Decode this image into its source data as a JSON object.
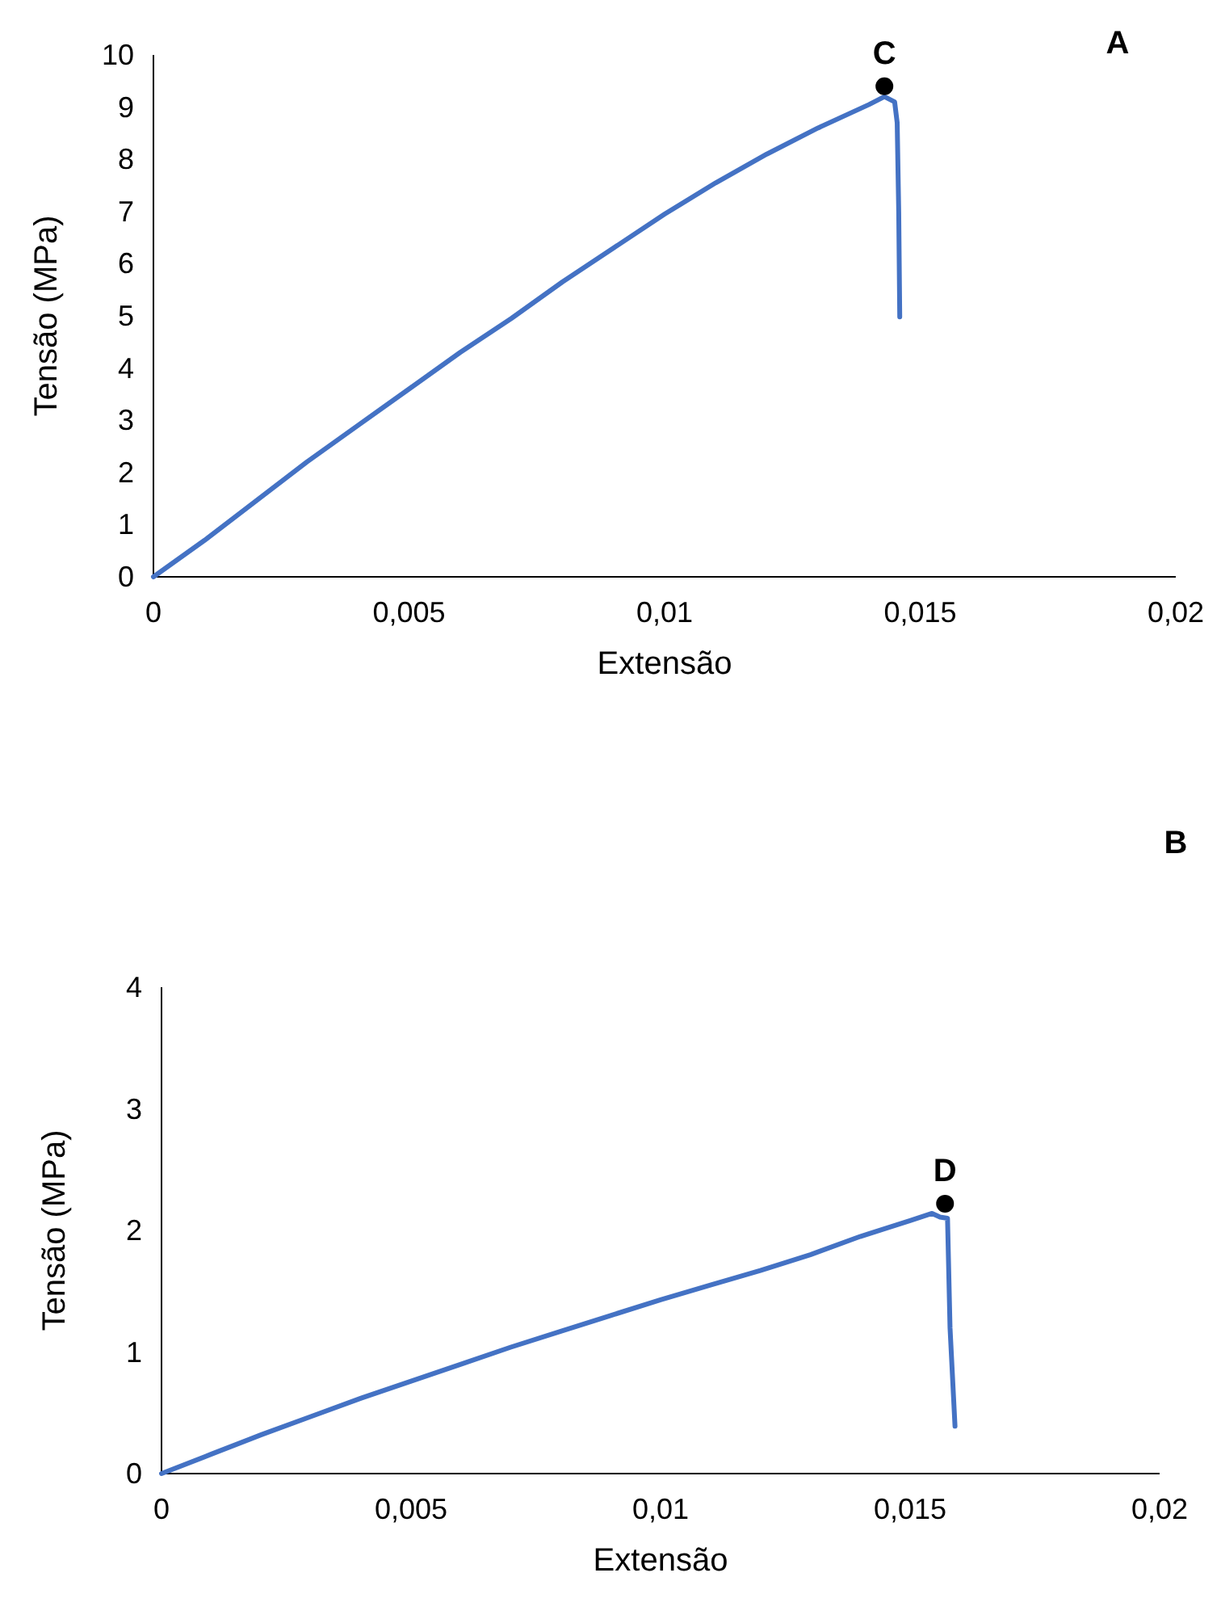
{
  "chart_data": [
    {
      "type": "line",
      "xlabel": "Extensão",
      "ylabel": "Tensão (MPa)",
      "xlim": [
        0,
        0.02
      ],
      "ylim": [
        0,
        10
      ],
      "xticks": [
        0,
        {
          "value": 0.005,
          "label": "0,005"
        },
        {
          "value": 0.01,
          "label": "0,01"
        },
        {
          "value": 0.015,
          "label": "0,015"
        },
        {
          "value": 0.02,
          "label": "0,02"
        }
      ],
      "yticks": [
        0,
        1,
        2,
        3,
        4,
        5,
        6,
        7,
        8,
        9,
        10
      ],
      "grid": false,
      "series": [
        {
          "type": "line",
          "color": "#4472c4",
          "x": [
            0,
            0.001,
            0.002,
            0.003,
            0.004,
            0.005,
            0.006,
            0.007,
            0.008,
            0.009,
            0.01,
            0.011,
            0.012,
            0.013,
            0.014,
            0.0143,
            0.0145,
            0.01455,
            0.01458,
            0.0146
          ],
          "values": [
            0,
            0.7,
            1.45,
            2.2,
            2.9,
            3.6,
            4.3,
            4.95,
            5.65,
            6.3,
            6.95,
            7.55,
            8.1,
            8.6,
            9.05,
            9.2,
            9.1,
            8.7,
            7,
            4.98
          ]
        },
        {
          "type": "scatter",
          "color": "#000000",
          "marker": "circle",
          "x": [
            0.0143
          ],
          "values": [
            9.4
          ]
        }
      ],
      "annotations": [
        {
          "text": "C",
          "x": 0.0143,
          "y": 9.4
        },
        "A"
      ]
    },
    {
      "type": "line",
      "xlabel": "Extensão",
      "ylabel": "Tensão (MPa)",
      "xlim": [
        0,
        0.02
      ],
      "ylim": [
        0,
        4
      ],
      "xticks": [
        0,
        {
          "value": 0.005,
          "label": "0,005"
        },
        {
          "value": 0.01,
          "label": "0,01"
        },
        {
          "value": 0.015,
          "label": "0,015"
        },
        {
          "value": 0.02,
          "label": "0,02"
        }
      ],
      "yticks": [
        0,
        1,
        2,
        3,
        4
      ],
      "grid": false,
      "series": [
        {
          "type": "line",
          "color": "#4472c4",
          "x": [
            0,
            0.001,
            0.002,
            0.003,
            0.004,
            0.005,
            0.006,
            0.007,
            0.008,
            0.009,
            0.01,
            0.011,
            0.012,
            0.013,
            0.014,
            0.015,
            0.01544,
            0.0156,
            0.01575,
            0.0158,
            0.0159
          ],
          "values": [
            0,
            0.16,
            0.32,
            0.47,
            0.62,
            0.76,
            0.9,
            1.04,
            1.17,
            1.3,
            1.43,
            1.55,
            1.67,
            1.8,
            1.95,
            2.08,
            2.14,
            2.11,
            2.1,
            1.2,
            0.39
          ]
        },
        {
          "type": "scatter",
          "color": "#000000",
          "marker": "circle",
          "x": [
            0.0157
          ],
          "values": [
            2.22
          ]
        }
      ],
      "annotations": [
        {
          "text": "D",
          "x": 0.0157,
          "y": 2.22
        },
        "B"
      ]
    }
  ]
}
